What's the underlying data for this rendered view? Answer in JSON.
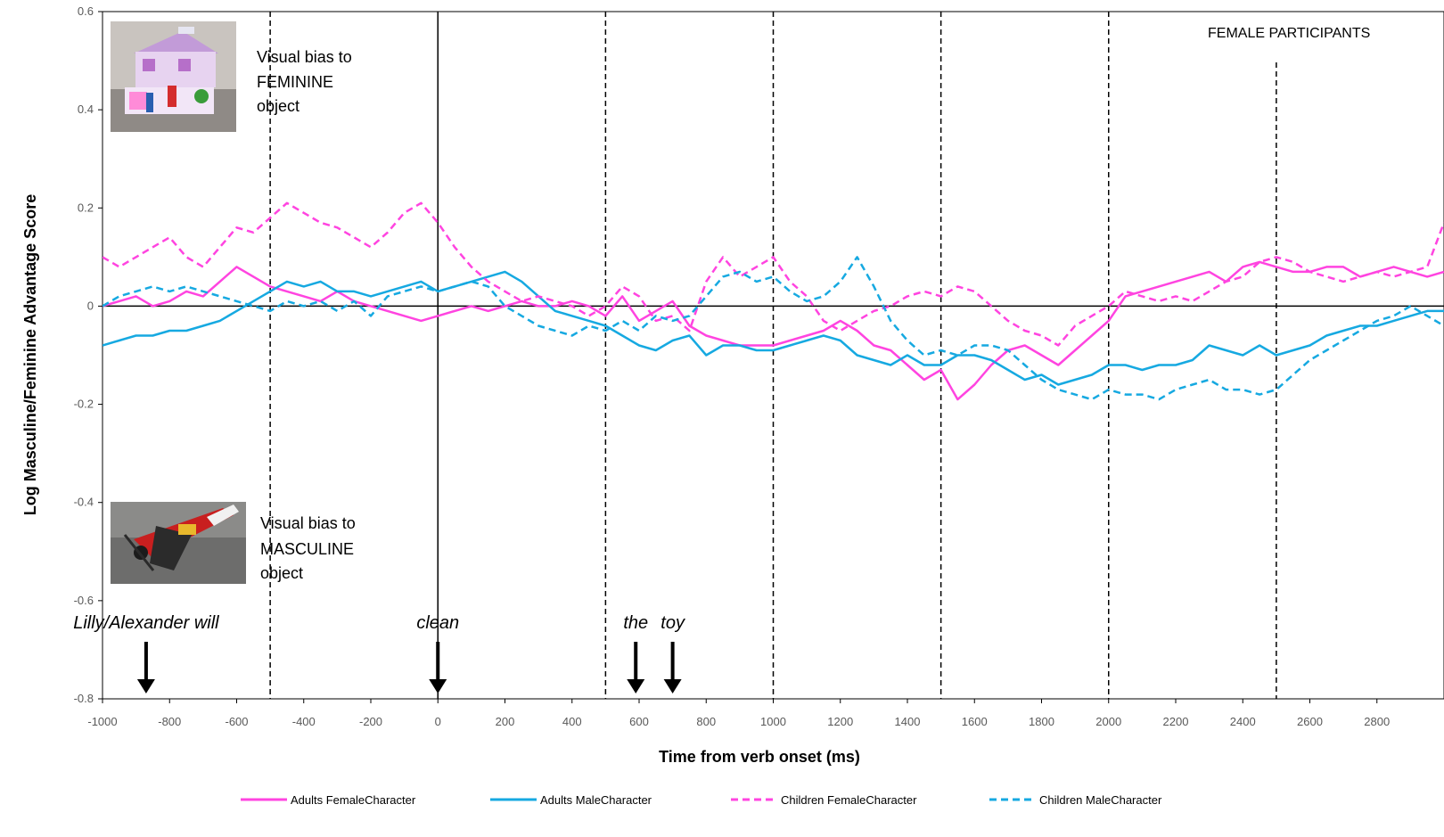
{
  "chart_data": {
    "type": "line",
    "title": "",
    "panel_label": "FEMALE PARTICIPANTS",
    "xlabel": "Time from verb onset (ms)",
    "ylabel": "Log Masculine/Feminine Advantage Score",
    "xlim": [
      -1000,
      3000
    ],
    "ylim": [
      -0.8,
      0.6
    ],
    "x_ticks": [
      -1000,
      -800,
      -600,
      -400,
      -200,
      0,
      200,
      400,
      600,
      800,
      1000,
      1200,
      1400,
      1600,
      1800,
      2000,
      2200,
      2400,
      2600,
      2800
    ],
    "y_ticks": [
      0.6,
      0.4,
      0.2,
      0,
      -0.2,
      -0.4,
      -0.6,
      -0.8
    ],
    "x_tick_labels": [
      "-1000",
      "-800",
      "-600",
      "-400",
      "-200",
      "0",
      "200",
      "400",
      "600",
      "800",
      "1000",
      "1200",
      "1400",
      "1600",
      "1800",
      "2000",
      "2200",
      "2400",
      "2600",
      "2800"
    ],
    "y_tick_labels": [
      "0.6",
      "0.4",
      "0.2",
      "0",
      "-0.2",
      "-0.4",
      "-0.6",
      "-0.8"
    ],
    "grid": false,
    "legend_position": "bottom",
    "zero_line": 0,
    "verb_onset_line": 0,
    "dashed_vlines": [
      -500,
      500,
      1000,
      1500,
      2000,
      2500
    ],
    "word_markers": [
      {
        "label": "Lilly/Alexander will",
        "x": -870
      },
      {
        "label": "clean",
        "x": 0
      },
      {
        "label": "the",
        "x": 590
      },
      {
        "label": "toy",
        "x": 700
      }
    ],
    "annotations": {
      "feminine_bias": [
        "Visual bias to",
        "FEMININE",
        "object"
      ],
      "masculine_bias": [
        "Visual bias to",
        "MASCULINE",
        "object"
      ]
    },
    "series": [
      {
        "name": "Adults FemaleCharacter",
        "color": "#ff44e0",
        "dash": "solid",
        "x": [
          -1000,
          -950,
          -900,
          -850,
          -800,
          -750,
          -700,
          -650,
          -600,
          -550,
          -500,
          -450,
          -400,
          -350,
          -300,
          -250,
          -200,
          -150,
          -100,
          -50,
          0,
          50,
          100,
          150,
          200,
          250,
          300,
          350,
          400,
          450,
          500,
          550,
          600,
          650,
          700,
          750,
          800,
          850,
          900,
          950,
          1000,
          1050,
          1100,
          1150,
          1200,
          1250,
          1300,
          1350,
          1400,
          1450,
          1500,
          1550,
          1600,
          1650,
          1700,
          1750,
          1800,
          1850,
          1900,
          1950,
          2000,
          2050,
          2100,
          2150,
          2200,
          2250,
          2300,
          2350,
          2400,
          2450,
          2500,
          2550,
          2600,
          2650,
          2700,
          2750,
          2800,
          2850,
          2900,
          2950,
          3000
        ],
        "y": [
          0,
          0.01,
          0.02,
          0,
          0.01,
          0.03,
          0.02,
          0.05,
          0.08,
          0.06,
          0.04,
          0.03,
          0.02,
          0.01,
          0.03,
          0.01,
          0,
          -0.01,
          -0.02,
          -0.03,
          -0.02,
          -0.01,
          0,
          -0.01,
          0,
          0.01,
          0,
          0,
          0.01,
          0,
          -0.02,
          0.02,
          -0.03,
          -0.01,
          0.01,
          -0.04,
          -0.06,
          -0.07,
          -0.08,
          -0.08,
          -0.08,
          -0.07,
          -0.06,
          -0.05,
          -0.03,
          -0.05,
          -0.08,
          -0.09,
          -0.12,
          -0.15,
          -0.13,
          -0.19,
          -0.16,
          -0.12,
          -0.09,
          -0.08,
          -0.1,
          -0.12,
          -0.09,
          -0.06,
          -0.03,
          0.02,
          0.03,
          0.04,
          0.05,
          0.06,
          0.07,
          0.05,
          0.08,
          0.09,
          0.08,
          0.07,
          0.07,
          0.08,
          0.08,
          0.06,
          0.07,
          0.08,
          0.07,
          0.06,
          0.07
        ]
      },
      {
        "name": "Adults MaleCharacter",
        "color": "#16a9e1",
        "dash": "solid",
        "x": [
          -1000,
          -950,
          -900,
          -850,
          -800,
          -750,
          -700,
          -650,
          -600,
          -550,
          -500,
          -450,
          -400,
          -350,
          -300,
          -250,
          -200,
          -150,
          -100,
          -50,
          0,
          50,
          100,
          150,
          200,
          250,
          300,
          350,
          400,
          450,
          500,
          550,
          600,
          650,
          700,
          750,
          800,
          850,
          900,
          950,
          1000,
          1050,
          1100,
          1150,
          1200,
          1250,
          1300,
          1350,
          1400,
          1450,
          1500,
          1550,
          1600,
          1650,
          1700,
          1750,
          1800,
          1850,
          1900,
          1950,
          2000,
          2050,
          2100,
          2150,
          2200,
          2250,
          2300,
          2350,
          2400,
          2450,
          2500,
          2550,
          2600,
          2650,
          2700,
          2750,
          2800,
          2850,
          2900,
          2950,
          3000
        ],
        "y": [
          -0.08,
          -0.07,
          -0.06,
          -0.06,
          -0.05,
          -0.05,
          -0.04,
          -0.03,
          -0.01,
          0.01,
          0.03,
          0.05,
          0.04,
          0.05,
          0.03,
          0.03,
          0.02,
          0.03,
          0.04,
          0.05,
          0.03,
          0.04,
          0.05,
          0.06,
          0.07,
          0.05,
          0.02,
          -0.01,
          -0.02,
          -0.03,
          -0.04,
          -0.06,
          -0.08,
          -0.09,
          -0.07,
          -0.06,
          -0.1,
          -0.08,
          -0.08,
          -0.09,
          -0.09,
          -0.08,
          -0.07,
          -0.06,
          -0.07,
          -0.1,
          -0.11,
          -0.12,
          -0.1,
          -0.12,
          -0.12,
          -0.1,
          -0.1,
          -0.11,
          -0.13,
          -0.15,
          -0.14,
          -0.16,
          -0.15,
          -0.14,
          -0.12,
          -0.12,
          -0.13,
          -0.12,
          -0.12,
          -0.11,
          -0.08,
          -0.09,
          -0.1,
          -0.08,
          -0.1,
          -0.09,
          -0.08,
          -0.06,
          -0.05,
          -0.04,
          -0.04,
          -0.03,
          -0.02,
          -0.01,
          -0.01
        ]
      },
      {
        "name": "Children FemaleCharacter",
        "color": "#ff44e0",
        "dash": "dashed",
        "x": [
          -1000,
          -950,
          -900,
          -850,
          -800,
          -750,
          -700,
          -650,
          -600,
          -550,
          -500,
          -450,
          -400,
          -350,
          -300,
          -250,
          -200,
          -150,
          -100,
          -50,
          0,
          50,
          100,
          150,
          200,
          250,
          300,
          350,
          400,
          450,
          500,
          550,
          600,
          650,
          700,
          750,
          800,
          850,
          900,
          950,
          1000,
          1050,
          1100,
          1150,
          1200,
          1250,
          1300,
          1350,
          1400,
          1450,
          1500,
          1550,
          1600,
          1650,
          1700,
          1750,
          1800,
          1850,
          1900,
          1950,
          2000,
          2050,
          2100,
          2150,
          2200,
          2250,
          2300,
          2350,
          2400,
          2450,
          2500,
          2550,
          2600,
          2650,
          2700,
          2750,
          2800,
          2850,
          2900,
          2950,
          3000
        ],
        "y": [
          0.1,
          0.08,
          0.1,
          0.12,
          0.14,
          0.1,
          0.08,
          0.12,
          0.16,
          0.15,
          0.18,
          0.21,
          0.19,
          0.17,
          0.16,
          0.14,
          0.12,
          0.15,
          0.19,
          0.21,
          0.17,
          0.12,
          0.08,
          0.05,
          0.03,
          0.01,
          0.02,
          0.01,
          0,
          -0.02,
          0,
          0.04,
          0.02,
          -0.03,
          -0.02,
          -0.05,
          0.05,
          0.1,
          0.06,
          0.08,
          0.1,
          0.05,
          0.02,
          -0.03,
          -0.05,
          -0.03,
          -0.01,
          0,
          0.02,
          0.03,
          0.02,
          0.04,
          0.03,
          0,
          -0.03,
          -0.05,
          -0.06,
          -0.08,
          -0.04,
          -0.02,
          0,
          0.03,
          0.02,
          0.01,
          0.02,
          0.01,
          0.03,
          0.05,
          0.06,
          0.09,
          0.1,
          0.09,
          0.07,
          0.06,
          0.05,
          0.06,
          0.07,
          0.06,
          0.07,
          0.08,
          0.17
        ]
      },
      {
        "name": "Children MaleCharacter",
        "color": "#16a9e1",
        "dash": "dashed",
        "x": [
          -1000,
          -950,
          -900,
          -850,
          -800,
          -750,
          -700,
          -650,
          -600,
          -550,
          -500,
          -450,
          -400,
          -350,
          -300,
          -250,
          -200,
          -150,
          -100,
          -50,
          0,
          50,
          100,
          150,
          200,
          250,
          300,
          350,
          400,
          450,
          500,
          550,
          600,
          650,
          700,
          750,
          800,
          850,
          900,
          950,
          1000,
          1050,
          1100,
          1150,
          1200,
          1250,
          1300,
          1350,
          1400,
          1450,
          1500,
          1550,
          1600,
          1650,
          1700,
          1750,
          1800,
          1850,
          1900,
          1950,
          2000,
          2050,
          2100,
          2150,
          2200,
          2250,
          2300,
          2350,
          2400,
          2450,
          2500,
          2550,
          2600,
          2650,
          2700,
          2750,
          2800,
          2850,
          2900,
          2950,
          3000
        ],
        "y": [
          0,
          0.02,
          0.03,
          0.04,
          0.03,
          0.04,
          0.03,
          0.02,
          0.01,
          0,
          -0.01,
          0.01,
          0,
          0.01,
          -0.01,
          0.01,
          -0.02,
          0.02,
          0.03,
          0.04,
          0.03,
          0.04,
          0.05,
          0.04,
          0,
          -0.02,
          -0.04,
          -0.05,
          -0.06,
          -0.04,
          -0.05,
          -0.03,
          -0.05,
          -0.02,
          -0.03,
          -0.02,
          0.02,
          0.06,
          0.07,
          0.05,
          0.06,
          0.03,
          0.01,
          0.02,
          0.05,
          0.1,
          0.04,
          -0.03,
          -0.07,
          -0.1,
          -0.09,
          -0.1,
          -0.08,
          -0.08,
          -0.09,
          -0.12,
          -0.15,
          -0.17,
          -0.18,
          -0.19,
          -0.17,
          -0.18,
          -0.18,
          -0.19,
          -0.17,
          -0.16,
          -0.15,
          -0.17,
          -0.17,
          -0.18,
          -0.17,
          -0.14,
          -0.11,
          -0.09,
          -0.07,
          -0.05,
          -0.03,
          -0.02,
          0,
          -0.02,
          -0.04
        ]
      }
    ]
  },
  "legend": [
    {
      "label": "Adults FemaleCharacter",
      "color": "#ff44e0",
      "dash": "solid"
    },
    {
      "label": "Adults MaleCharacter",
      "color": "#16a9e1",
      "dash": "solid"
    },
    {
      "label": "Children FemaleCharacter",
      "color": "#ff44e0",
      "dash": "dashed"
    },
    {
      "label": "Children MaleCharacter",
      "color": "#16a9e1",
      "dash": "dashed"
    }
  ],
  "images": {
    "feminine": "pink-lego-house-photo",
    "masculine": "red-lego-airplane-photo"
  }
}
